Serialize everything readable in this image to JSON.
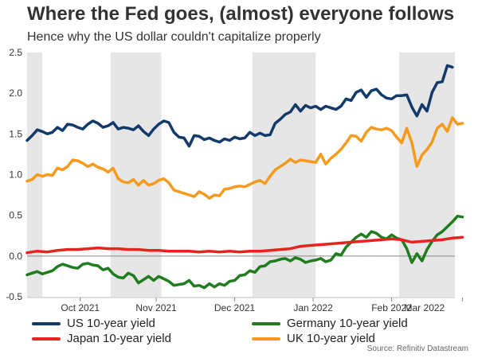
{
  "header": {
    "title": "Where the Fed goes, (almost) everyone follows",
    "subtitle": "Hence why the US dollar couldn't capitalize properly"
  },
  "source": "Source: Refinitiv Datastream",
  "colors": {
    "us": "#123a6b",
    "germany": "#1f7d1f",
    "japan": "#e8231f",
    "uk": "#f59a1b",
    "shade": "#e6e6e6",
    "zero_line": "#888888"
  },
  "chart_data": {
    "type": "line",
    "title": "Where the Fed goes, (almost) everyone follows",
    "subtitle": "Hence why the US dollar couldn't capitalize properly",
    "xlabel": "",
    "ylabel": "",
    "x_range_days": [
      0,
      169
    ],
    "ylim": [
      -0.5,
      2.5
    ],
    "y_ticks": [
      -0.5,
      0.0,
      0.5,
      1.0,
      1.5,
      2.0,
      2.5
    ],
    "y_tick_labels": [
      "-0.5",
      "0.0",
      "0.5",
      "1.0",
      "1.5",
      "2.0",
      "2.5"
    ],
    "x_tick_positions": [
      21,
      51,
      82,
      113,
      144,
      172
    ],
    "x_labels": [
      {
        "label": "Oct 2021",
        "center": 21
      },
      {
        "label": "Nov 2021",
        "center": 51
      },
      {
        "label": "Dec 2021",
        "center": 82
      },
      {
        "label": "Jan 2022",
        "center": 113
      },
      {
        "label": "Feb 2022",
        "center": 144
      },
      {
        "label": "Mar 2022",
        "center": 157
      }
    ],
    "shaded_periods": [
      [
        0,
        6
      ],
      [
        33,
        53
      ],
      [
        89,
        114
      ],
      [
        147,
        169
      ]
    ],
    "zero_line": 0,
    "grid": false,
    "legend_position": "bottom",
    "series": [
      {
        "name": "US 10-year yield",
        "color_key": "us",
        "points": [
          [
            0,
            1.42
          ],
          [
            2,
            1.48
          ],
          [
            4,
            1.55
          ],
          [
            6,
            1.53
          ],
          [
            8,
            1.5
          ],
          [
            10,
            1.52
          ],
          [
            12,
            1.58
          ],
          [
            14,
            1.54
          ],
          [
            16,
            1.62
          ],
          [
            18,
            1.61
          ],
          [
            20,
            1.58
          ],
          [
            22,
            1.56
          ],
          [
            24,
            1.62
          ],
          [
            26,
            1.66
          ],
          [
            28,
            1.63
          ],
          [
            30,
            1.58
          ],
          [
            32,
            1.6
          ],
          [
            34,
            1.64
          ],
          [
            36,
            1.56
          ],
          [
            38,
            1.58
          ],
          [
            40,
            1.57
          ],
          [
            42,
            1.55
          ],
          [
            44,
            1.6
          ],
          [
            46,
            1.53
          ],
          [
            48,
            1.48
          ],
          [
            50,
            1.56
          ],
          [
            52,
            1.62
          ],
          [
            54,
            1.66
          ],
          [
            56,
            1.64
          ],
          [
            58,
            1.52
          ],
          [
            60,
            1.46
          ],
          [
            62,
            1.45
          ],
          [
            64,
            1.35
          ],
          [
            66,
            1.48
          ],
          [
            68,
            1.47
          ],
          [
            70,
            1.43
          ],
          [
            72,
            1.45
          ],
          [
            74,
            1.42
          ],
          [
            76,
            1.4
          ],
          [
            78,
            1.44
          ],
          [
            80,
            1.42
          ],
          [
            82,
            1.46
          ],
          [
            84,
            1.44
          ],
          [
            86,
            1.45
          ],
          [
            88,
            1.52
          ],
          [
            90,
            1.48
          ],
          [
            92,
            1.51
          ],
          [
            94,
            1.48
          ],
          [
            96,
            1.49
          ],
          [
            98,
            1.63
          ],
          [
            100,
            1.68
          ],
          [
            102,
            1.74
          ],
          [
            104,
            1.77
          ],
          [
            106,
            1.86
          ],
          [
            108,
            1.78
          ],
          [
            110,
            1.85
          ],
          [
            112,
            1.82
          ],
          [
            114,
            1.84
          ],
          [
            116,
            1.8
          ],
          [
            118,
            1.84
          ],
          [
            120,
            1.82
          ],
          [
            122,
            1.8
          ],
          [
            124,
            1.84
          ],
          [
            126,
            1.93
          ],
          [
            128,
            1.91
          ],
          [
            130,
            2.01
          ],
          [
            132,
            2.04
          ],
          [
            134,
            1.95
          ],
          [
            136,
            2.03
          ],
          [
            138,
            2.05
          ],
          [
            140,
            1.98
          ],
          [
            142,
            1.94
          ],
          [
            144,
            1.93
          ],
          [
            146,
            1.97
          ],
          [
            148,
            1.97
          ],
          [
            150,
            1.98
          ],
          [
            152,
            1.83
          ],
          [
            154,
            1.72
          ],
          [
            156,
            1.86
          ],
          [
            158,
            1.78
          ],
          [
            160,
            2.01
          ],
          [
            162,
            2.13
          ],
          [
            164,
            2.14
          ],
          [
            166,
            2.34
          ],
          [
            168,
            2.32
          ]
        ]
      },
      {
        "name": "Germany 10-year yield",
        "color_key": "germany",
        "points": [
          [
            0,
            -0.23
          ],
          [
            2,
            -0.21
          ],
          [
            4,
            -0.19
          ],
          [
            6,
            -0.22
          ],
          [
            8,
            -0.2
          ],
          [
            10,
            -0.18
          ],
          [
            12,
            -0.13
          ],
          [
            14,
            -0.1
          ],
          [
            16,
            -0.12
          ],
          [
            18,
            -0.14
          ],
          [
            20,
            -0.15
          ],
          [
            22,
            -0.1
          ],
          [
            24,
            -0.09
          ],
          [
            26,
            -0.11
          ],
          [
            28,
            -0.12
          ],
          [
            30,
            -0.17
          ],
          [
            32,
            -0.15
          ],
          [
            34,
            -0.22
          ],
          [
            36,
            -0.26
          ],
          [
            38,
            -0.27
          ],
          [
            40,
            -0.21
          ],
          [
            42,
            -0.24
          ],
          [
            44,
            -0.33
          ],
          [
            46,
            -0.29
          ],
          [
            48,
            -0.25
          ],
          [
            50,
            -0.3
          ],
          [
            52,
            -0.25
          ],
          [
            54,
            -0.28
          ],
          [
            56,
            -0.31
          ],
          [
            58,
            -0.36
          ],
          [
            60,
            -0.35
          ],
          [
            62,
            -0.34
          ],
          [
            64,
            -0.3
          ],
          [
            66,
            -0.37
          ],
          [
            68,
            -0.36
          ],
          [
            70,
            -0.39
          ],
          [
            72,
            -0.34
          ],
          [
            74,
            -0.38
          ],
          [
            76,
            -0.34
          ],
          [
            78,
            -0.36
          ],
          [
            80,
            -0.31
          ],
          [
            82,
            -0.3
          ],
          [
            84,
            -0.24
          ],
          [
            86,
            -0.23
          ],
          [
            88,
            -0.18
          ],
          [
            90,
            -0.2
          ],
          [
            92,
            -0.13
          ],
          [
            94,
            -0.12
          ],
          [
            96,
            -0.07
          ],
          [
            98,
            -0.06
          ],
          [
            100,
            -0.04
          ],
          [
            102,
            -0.03
          ],
          [
            104,
            -0.06
          ],
          [
            106,
            -0.02
          ],
          [
            108,
            -0.04
          ],
          [
            110,
            -0.08
          ],
          [
            112,
            -0.06
          ],
          [
            114,
            -0.05
          ],
          [
            116,
            -0.03
          ],
          [
            118,
            -0.07
          ],
          [
            120,
            -0.05
          ],
          [
            122,
            0.03
          ],
          [
            124,
            0.01
          ],
          [
            126,
            0.11
          ],
          [
            128,
            0.17
          ],
          [
            130,
            0.23
          ],
          [
            132,
            0.27
          ],
          [
            134,
            0.23
          ],
          [
            136,
            0.3
          ],
          [
            138,
            0.28
          ],
          [
            140,
            0.23
          ],
          [
            142,
            0.21
          ],
          [
            144,
            0.26
          ],
          [
            146,
            0.22
          ],
          [
            148,
            0.2
          ],
          [
            150,
            0.09
          ],
          [
            152,
            -0.08
          ],
          [
            154,
            0.03
          ],
          [
            156,
            -0.06
          ],
          [
            158,
            0.08
          ],
          [
            160,
            0.18
          ],
          [
            162,
            0.26
          ],
          [
            164,
            0.3
          ],
          [
            166,
            0.36
          ],
          [
            168,
            0.42
          ],
          [
            170,
            0.49
          ],
          [
            172,
            0.48
          ]
        ]
      },
      {
        "name": "Japan 10-year yield",
        "color_key": "japan",
        "points": [
          [
            0,
            0.04
          ],
          [
            4,
            0.06
          ],
          [
            8,
            0.05
          ],
          [
            12,
            0.07
          ],
          [
            16,
            0.08
          ],
          [
            20,
            0.08
          ],
          [
            24,
            0.09
          ],
          [
            28,
            0.1
          ],
          [
            32,
            0.09
          ],
          [
            36,
            0.09
          ],
          [
            40,
            0.08
          ],
          [
            44,
            0.08
          ],
          [
            48,
            0.07
          ],
          [
            52,
            0.07
          ],
          [
            56,
            0.06
          ],
          [
            60,
            0.06
          ],
          [
            64,
            0.06
          ],
          [
            68,
            0.05
          ],
          [
            72,
            0.06
          ],
          [
            76,
            0.05
          ],
          [
            80,
            0.06
          ],
          [
            84,
            0.05
          ],
          [
            88,
            0.06
          ],
          [
            92,
            0.06
          ],
          [
            96,
            0.07
          ],
          [
            100,
            0.08
          ],
          [
            104,
            0.09
          ],
          [
            108,
            0.12
          ],
          [
            112,
            0.13
          ],
          [
            116,
            0.14
          ],
          [
            120,
            0.15
          ],
          [
            124,
            0.16
          ],
          [
            128,
            0.17
          ],
          [
            132,
            0.18
          ],
          [
            136,
            0.19
          ],
          [
            140,
            0.2
          ],
          [
            144,
            0.21
          ],
          [
            148,
            0.2
          ],
          [
            152,
            0.17
          ],
          [
            156,
            0.18
          ],
          [
            160,
            0.19
          ],
          [
            164,
            0.2
          ],
          [
            168,
            0.22
          ],
          [
            172,
            0.23
          ]
        ]
      },
      {
        "name": "UK 10-year yield",
        "color_key": "uk",
        "points": [
          [
            0,
            0.92
          ],
          [
            2,
            0.94
          ],
          [
            4,
            1.0
          ],
          [
            6,
            0.98
          ],
          [
            8,
            1.0
          ],
          [
            10,
            0.99
          ],
          [
            12,
            1.08
          ],
          [
            14,
            1.06
          ],
          [
            16,
            1.1
          ],
          [
            18,
            1.18
          ],
          [
            20,
            1.17
          ],
          [
            22,
            1.14
          ],
          [
            24,
            1.1
          ],
          [
            26,
            1.13
          ],
          [
            28,
            1.09
          ],
          [
            30,
            1.07
          ],
          [
            32,
            1.03
          ],
          [
            34,
            1.08
          ],
          [
            36,
            0.95
          ],
          [
            38,
            0.91
          ],
          [
            40,
            0.9
          ],
          [
            42,
            0.94
          ],
          [
            44,
            0.87
          ],
          [
            46,
            0.93
          ],
          [
            48,
            0.87
          ],
          [
            50,
            0.89
          ],
          [
            52,
            0.93
          ],
          [
            54,
            0.95
          ],
          [
            56,
            0.9
          ],
          [
            58,
            0.81
          ],
          [
            60,
            0.79
          ],
          [
            62,
            0.77
          ],
          [
            64,
            0.75
          ],
          [
            66,
            0.73
          ],
          [
            68,
            0.79
          ],
          [
            70,
            0.76
          ],
          [
            72,
            0.71
          ],
          [
            74,
            0.75
          ],
          [
            76,
            0.74
          ],
          [
            78,
            0.82
          ],
          [
            80,
            0.83
          ],
          [
            82,
            0.85
          ],
          [
            84,
            0.86
          ],
          [
            86,
            0.85
          ],
          [
            88,
            0.88
          ],
          [
            90,
            0.91
          ],
          [
            92,
            0.93
          ],
          [
            94,
            0.89
          ],
          [
            96,
            0.98
          ],
          [
            98,
            1.06
          ],
          [
            100,
            1.1
          ],
          [
            102,
            1.14
          ],
          [
            104,
            1.19
          ],
          [
            106,
            1.15
          ],
          [
            108,
            1.18
          ],
          [
            110,
            1.17
          ],
          [
            112,
            1.16
          ],
          [
            114,
            1.15
          ],
          [
            116,
            1.25
          ],
          [
            118,
            1.13
          ],
          [
            120,
            1.2
          ],
          [
            122,
            1.25
          ],
          [
            124,
            1.31
          ],
          [
            126,
            1.39
          ],
          [
            128,
            1.48
          ],
          [
            130,
            1.47
          ],
          [
            132,
            1.41
          ],
          [
            134,
            1.52
          ],
          [
            136,
            1.58
          ],
          [
            138,
            1.56
          ],
          [
            140,
            1.55
          ],
          [
            142,
            1.57
          ],
          [
            144,
            1.54
          ],
          [
            146,
            1.46
          ],
          [
            148,
            1.39
          ],
          [
            150,
            1.57
          ],
          [
            152,
            1.39
          ],
          [
            154,
            1.1
          ],
          [
            156,
            1.24
          ],
          [
            158,
            1.31
          ],
          [
            160,
            1.4
          ],
          [
            162,
            1.57
          ],
          [
            164,
            1.62
          ],
          [
            166,
            1.53
          ],
          [
            168,
            1.7
          ],
          [
            170,
            1.62
          ],
          [
            172,
            1.63
          ]
        ]
      }
    ]
  }
}
